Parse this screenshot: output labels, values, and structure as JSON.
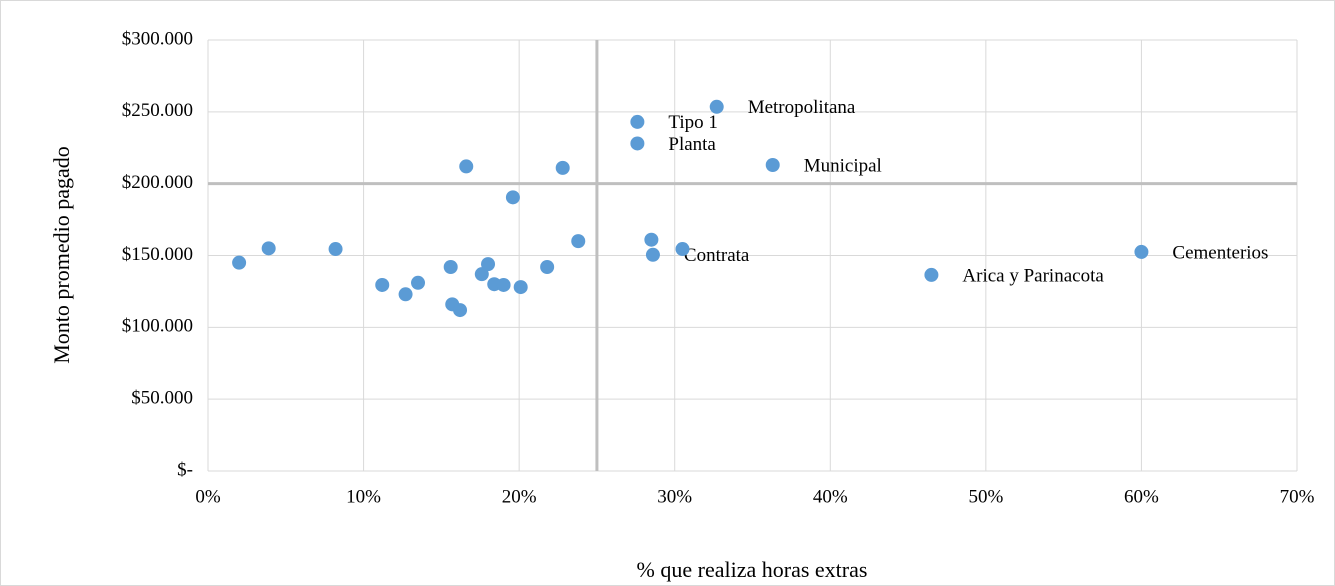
{
  "chart_data": {
    "type": "scatter",
    "x_label": "% que realiza horas extras",
    "y_label": "Monto promedio pagado",
    "color": "#5b9bd5",
    "grid": true,
    "reference_lines": {
      "x": 25,
      "y": 200000
    },
    "xlim": [
      0,
      70
    ],
    "xticks": [
      {
        "value": 0,
        "label": "0%"
      },
      {
        "value": 10,
        "label": "10%"
      },
      {
        "value": 20,
        "label": "20%"
      },
      {
        "value": 30,
        "label": "30%"
      },
      {
        "value": 40,
        "label": "40%"
      },
      {
        "value": 50,
        "label": "50%"
      },
      {
        "value": 60,
        "label": "60%"
      },
      {
        "value": 70,
        "label": "70%"
      }
    ],
    "ylim": [
      0,
      300000
    ],
    "yticks": [
      {
        "value": 0,
        "label": "$-"
      },
      {
        "value": 50000,
        "label": "$50.000"
      },
      {
        "value": 100000,
        "label": "$100.000"
      },
      {
        "value": 150000,
        "label": "$150.000"
      },
      {
        "value": 200000,
        "label": "$200.000"
      },
      {
        "value": 250000,
        "label": "$250.000"
      },
      {
        "value": 300000,
        "label": "$300.000"
      }
    ],
    "x": [
      2.0,
      3.9,
      8.2,
      11.2,
      12.7,
      13.5,
      15.6,
      15.7,
      16.2,
      16.6,
      17.6,
      18.0,
      18.4,
      19.0,
      19.6,
      20.1,
      21.8,
      22.8,
      23.8,
      27.6,
      27.6,
      28.5,
      28.6,
      30.5,
      32.7,
      36.3,
      46.5,
      60.0
    ],
    "values": [
      145000,
      155000,
      154500,
      129500,
      123000,
      131000,
      142000,
      116000,
      112000,
      212000,
      137000,
      144000,
      130000,
      129500,
      190500,
      128000,
      142000,
      211000,
      160000,
      243000,
      228000,
      161000,
      150500,
      154500,
      253500,
      213000,
      136500,
      152500
    ],
    "point_labels": [
      null,
      null,
      null,
      null,
      null,
      null,
      null,
      null,
      null,
      null,
      null,
      null,
      null,
      null,
      null,
      null,
      null,
      null,
      null,
      "Tipo 1",
      "Planta",
      null,
      "Contrata",
      null,
      "Metropolitana",
      "Municipal",
      "Arica y Parinacota",
      "Cementerios"
    ]
  }
}
